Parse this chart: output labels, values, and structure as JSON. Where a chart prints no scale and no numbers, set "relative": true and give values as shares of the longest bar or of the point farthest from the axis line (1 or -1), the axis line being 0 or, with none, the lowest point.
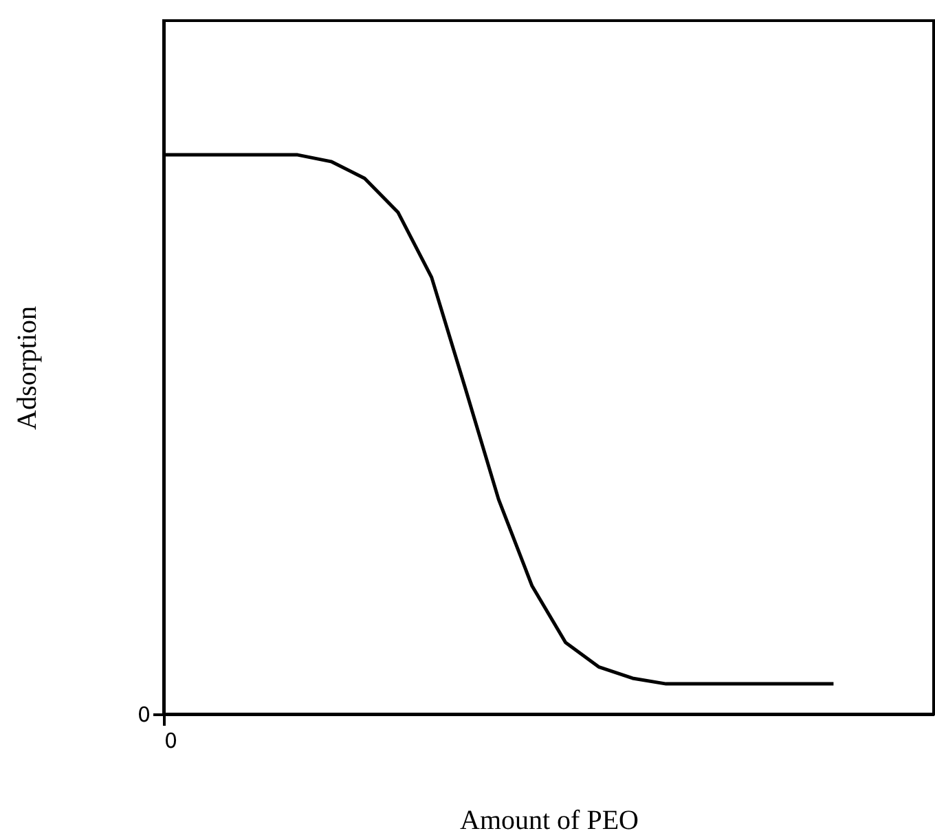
{
  "chart_data": {
    "type": "line",
    "relative": true,
    "xlabel": "Amount of PEO",
    "ylabel": "Adsorption",
    "annotations": [
      "0",
      "0"
    ],
    "categories": [
      null,
      null,
      null,
      null,
      null,
      null,
      null,
      null,
      null,
      null,
      null,
      null,
      null,
      null,
      null,
      null,
      null,
      null,
      null,
      null,
      null
    ],
    "values": [
      1,
      1,
      1,
      1,
      1,
      0.988,
      0.958,
      0.897,
      0.781,
      0.584,
      0.384,
      0.229,
      0.128,
      0.084,
      0.064,
      0.054,
      0.054,
      0.054,
      0.054,
      0.054,
      0.054
    ],
    "color": "#000000",
    "marker": "none",
    "line_style": "solid"
  }
}
